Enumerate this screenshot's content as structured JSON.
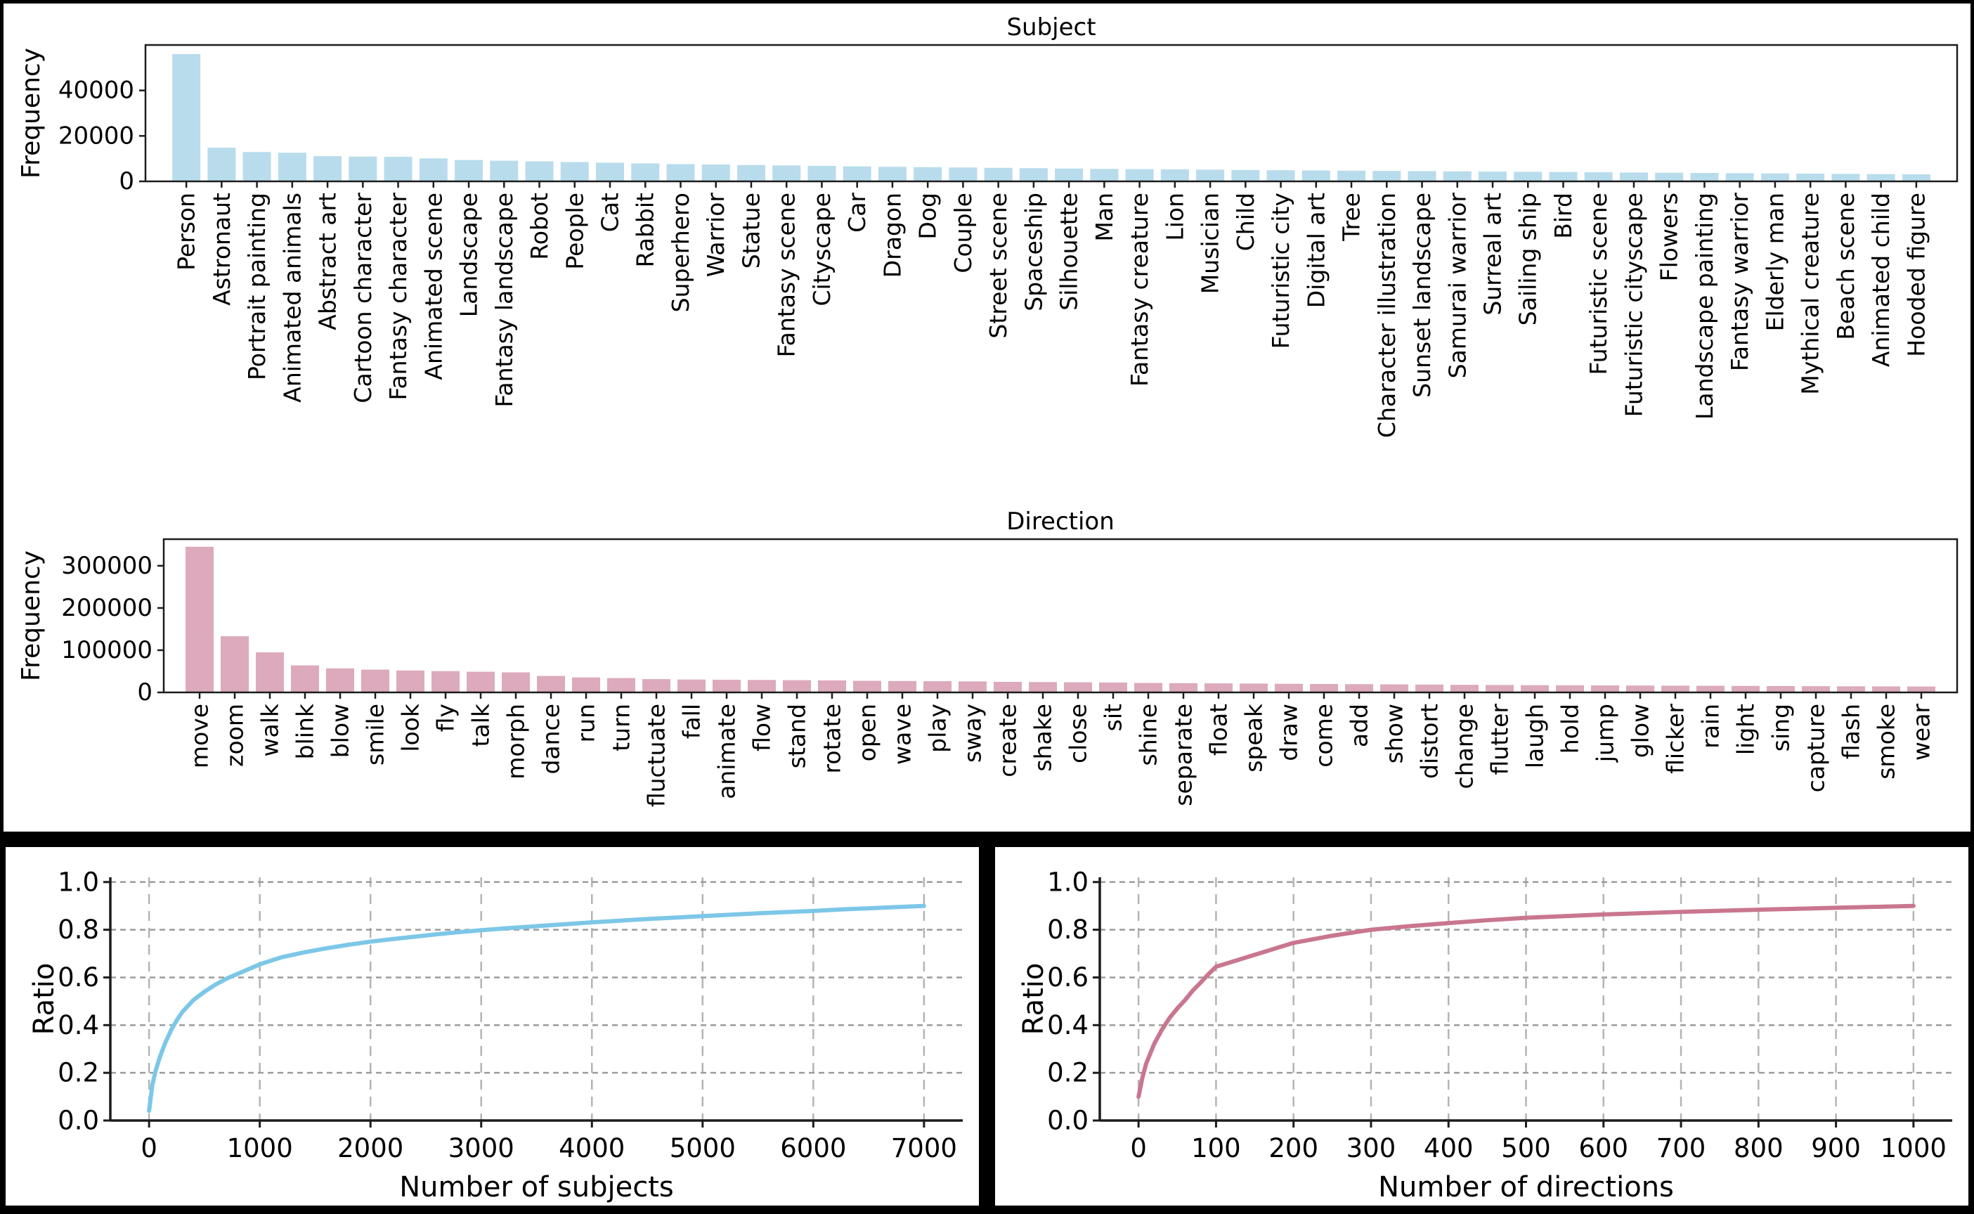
{
  "figure": {
    "description": "Frequency distributions of subjects and directions with cumulative coverage ratio curves"
  },
  "colors": {
    "subject_bar": "#b8dcec",
    "direction_bar": "#dcaabc",
    "subject_line": "#7cc7e8",
    "direction_line": "#c9768f",
    "grid_vertical": "#b4b4b4",
    "grid_horizontal": "#9c9c9c",
    "spine": "#1c1c1c",
    "frame": "#000000"
  },
  "chart_data": [
    {
      "id": "subject_bar",
      "type": "bar",
      "title": "Subject",
      "xlabel": "",
      "ylabel": "Frequency",
      "ylim": [
        0,
        60000
      ],
      "yticks": [
        0,
        20000,
        40000
      ],
      "ytick_labels": [
        "0",
        "20000",
        "40000"
      ],
      "grid": false,
      "legend_position": "none",
      "categories": [
        "Person",
        "Astronaut",
        "Portrait painting",
        "Animated animals",
        "Abstract art",
        "Cartoon character",
        "Fantasy character",
        "Animated scene",
        "Landscape",
        "Fantasy landscape",
        "Robot",
        "People",
        "Cat",
        "Rabbit",
        "Superhero",
        "Warrior",
        "Statue",
        "Fantasy scene",
        "Cityscape",
        "Car",
        "Dragon",
        "Dog",
        "Couple",
        "Street scene",
        "Spaceship",
        "Silhouette",
        "Man",
        "Fantasy creature",
        "Lion",
        "Musician",
        "Child",
        "Futuristic city",
        "Digital art",
        "Tree",
        "Character illustration",
        "Sunset landscape",
        "Samurai warrior",
        "Surreal art",
        "Sailing ship",
        "Bird",
        "Futuristic scene",
        "Futuristic cityscape",
        "Flowers",
        "Landscape painting",
        "Fantasy warrior",
        "Elderly man",
        "Mythical creature",
        "Beach scene",
        "Animated child",
        "Hooded figure"
      ],
      "values": [
        56000,
        14800,
        12900,
        12600,
        11100,
        10900,
        10800,
        10100,
        9400,
        9100,
        8800,
        8500,
        8200,
        7900,
        7600,
        7400,
        7200,
        7000,
        6800,
        6600,
        6400,
        6250,
        6100,
        5950,
        5800,
        5650,
        5500,
        5400,
        5300,
        5150,
        5000,
        4900,
        4800,
        4700,
        4600,
        4500,
        4400,
        4300,
        4200,
        4100,
        4000,
        3900,
        3800,
        3700,
        3600,
        3500,
        3400,
        3300,
        3200,
        3100
      ]
    },
    {
      "id": "direction_bar",
      "type": "bar",
      "title": "Direction",
      "xlabel": "",
      "ylabel": "Frequency",
      "ylim": [
        0,
        363000
      ],
      "yticks": [
        0,
        100000,
        200000,
        300000
      ],
      "ytick_labels": [
        "0",
        "100000",
        "200000",
        "300000"
      ],
      "grid": false,
      "legend_position": "none",
      "categories": [
        "move",
        "zoom",
        "walk",
        "blink",
        "blow",
        "smile",
        "look",
        "fly",
        "talk",
        "morph",
        "dance",
        "run",
        "turn",
        "fluctuate",
        "fall",
        "animate",
        "flow",
        "stand",
        "rotate",
        "open",
        "wave",
        "play",
        "sway",
        "create",
        "shake",
        "close",
        "sit",
        "shine",
        "separate",
        "float",
        "speak",
        "draw",
        "come",
        "add",
        "show",
        "distort",
        "change",
        "flutter",
        "laugh",
        "hold",
        "jump",
        "glow",
        "flicker",
        "rain",
        "light",
        "sing",
        "capture",
        "flash",
        "smoke",
        "wear"
      ],
      "values": [
        345000,
        133000,
        95000,
        64000,
        57000,
        54000,
        52000,
        50500,
        49000,
        47500,
        39000,
        35500,
        34000,
        31500,
        30500,
        30000,
        29500,
        29000,
        28500,
        27500,
        27000,
        26500,
        26000,
        25000,
        24500,
        24000,
        23500,
        22500,
        22000,
        21500,
        21000,
        20500,
        20000,
        19500,
        19000,
        18500,
        18000,
        17500,
        17200,
        16900,
        16600,
        16300,
        16000,
        15700,
        15400,
        15100,
        14800,
        14500,
        14200,
        14000
      ]
    },
    {
      "id": "subject_cdf",
      "type": "line",
      "title": "",
      "xlabel": "Number of subjects",
      "ylabel": "Ratio",
      "xlim": [
        -350,
        7350
      ],
      "ylim": [
        0,
        1.02
      ],
      "xticks": [
        0,
        1000,
        2000,
        3000,
        4000,
        5000,
        6000,
        7000
      ],
      "xtick_labels": [
        "0",
        "1000",
        "2000",
        "3000",
        "4000",
        "5000",
        "6000",
        "7000"
      ],
      "yticks": [
        0.0,
        0.2,
        0.4,
        0.6,
        0.8,
        1.0
      ],
      "ytick_labels": [
        "0.0",
        "0.2",
        "0.4",
        "0.6",
        "0.8",
        "1.0"
      ],
      "grid": true,
      "legend_position": "none",
      "x": [
        0,
        30,
        60,
        100,
        150,
        200,
        250,
        300,
        400,
        500,
        600,
        700,
        800,
        900,
        1000,
        1200,
        1400,
        1600,
        1800,
        2000,
        2200,
        2400,
        2600,
        2800,
        3000,
        3250,
        3500,
        3750,
        4000,
        4250,
        4500,
        4750,
        5000,
        5250,
        5500,
        5750,
        6000,
        6250,
        6500,
        6750,
        7000
      ],
      "y": [
        0.04,
        0.15,
        0.21,
        0.27,
        0.33,
        0.38,
        0.42,
        0.455,
        0.505,
        0.54,
        0.57,
        0.595,
        0.615,
        0.635,
        0.655,
        0.685,
        0.705,
        0.722,
        0.737,
        0.75,
        0.761,
        0.771,
        0.781,
        0.79,
        0.798,
        0.807,
        0.815,
        0.823,
        0.831,
        0.838,
        0.845,
        0.851,
        0.857,
        0.863,
        0.869,
        0.874,
        0.879,
        0.885,
        0.89,
        0.895,
        0.9
      ]
    },
    {
      "id": "direction_cdf",
      "type": "line",
      "title": "",
      "xlabel": "Number of directions",
      "ylabel": "Ratio",
      "xlim": [
        -50,
        1050
      ],
      "ylim": [
        0,
        1.02
      ],
      "xticks": [
        0,
        100,
        200,
        300,
        400,
        500,
        600,
        700,
        800,
        900,
        1000
      ],
      "xtick_labels": [
        "0",
        "100",
        "200",
        "300",
        "400",
        "500",
        "600",
        "700",
        "800",
        "900",
        "1000"
      ],
      "yticks": [
        0.0,
        0.2,
        0.4,
        0.6,
        0.8,
        1.0
      ],
      "ytick_labels": [
        "0.0",
        "0.2",
        "0.4",
        "0.6",
        "0.8",
        "1.0"
      ],
      "grid": true,
      "legend_position": "none",
      "x": [
        0,
        5,
        10,
        20,
        30,
        40,
        50,
        60,
        70,
        80,
        90,
        100,
        150,
        200,
        250,
        300,
        350,
        400,
        450,
        500,
        600,
        700,
        800,
        900,
        1000
      ],
      "y": [
        0.1,
        0.18,
        0.24,
        0.32,
        0.38,
        0.43,
        0.47,
        0.505,
        0.545,
        0.578,
        0.613,
        0.645,
        0.695,
        0.745,
        0.775,
        0.8,
        0.815,
        0.828,
        0.84,
        0.85,
        0.864,
        0.875,
        0.884,
        0.892,
        0.9
      ]
    }
  ]
}
